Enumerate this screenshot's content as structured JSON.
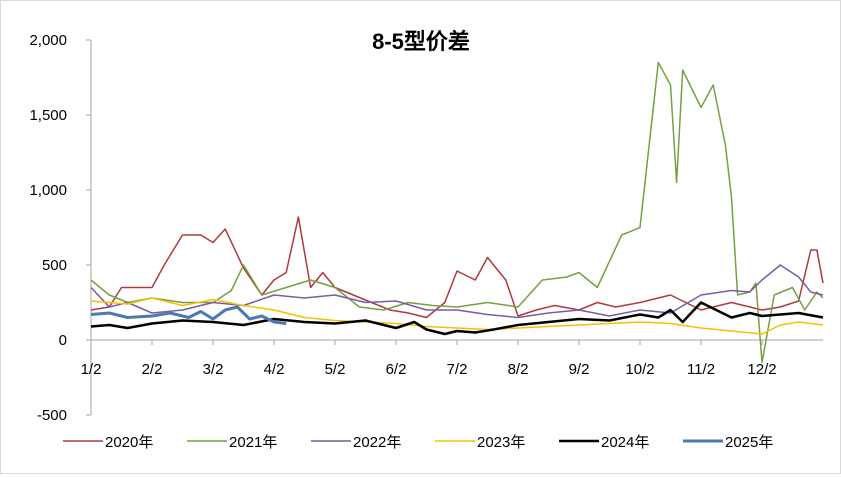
{
  "chart_data": {
    "type": "line",
    "title": "8-5型价差",
    "xlabel": "",
    "ylabel": "",
    "ylim": [
      -500,
      2000
    ],
    "y_ticks": [
      -500,
      0,
      500,
      1000,
      1500,
      2000
    ],
    "y_tick_labels": [
      "-500",
      "0",
      "500",
      "1,000",
      "1,500",
      "2,000"
    ],
    "x_ticks": [
      "1/2",
      "2/2",
      "3/2",
      "4/2",
      "5/2",
      "6/2",
      "7/2",
      "8/2",
      "9/2",
      "10/2",
      "11/2",
      "12/2"
    ],
    "x_domain_months": [
      0,
      12
    ],
    "grid": false,
    "legend_position": "bottom",
    "series": [
      {
        "name": "2020年",
        "color": "#b03a3a",
        "width": 1.5,
        "x": [
          0.0,
          0.3,
          0.5,
          0.7,
          1.0,
          1.2,
          1.5,
          1.8,
          2.0,
          2.2,
          2.5,
          2.8,
          3.0,
          3.2,
          3.4,
          3.6,
          3.8,
          4.0,
          4.3,
          4.6,
          4.9,
          5.2,
          5.5,
          5.8,
          6.0,
          6.3,
          6.5,
          6.8,
          7.0,
          7.3,
          7.6,
          8.0,
          8.3,
          8.6,
          9.0,
          9.5,
          10.0,
          10.5,
          11.0,
          11.3,
          11.6,
          11.8,
          11.9,
          12.0
        ],
        "y": [
          200,
          220,
          350,
          350,
          350,
          500,
          700,
          700,
          650,
          740,
          480,
          300,
          400,
          450,
          820,
          350,
          450,
          350,
          300,
          250,
          200,
          180,
          150,
          250,
          460,
          400,
          550,
          400,
          160,
          200,
          230,
          200,
          250,
          220,
          250,
          300,
          200,
          250,
          200,
          220,
          260,
          600,
          600,
          380
        ]
      },
      {
        "name": "2021年",
        "color": "#77a043",
        "width": 1.5,
        "x": [
          0.0,
          0.3,
          0.6,
          1.0,
          1.5,
          2.0,
          2.3,
          2.5,
          2.8,
          3.2,
          3.6,
          4.0,
          4.4,
          4.8,
          5.2,
          5.6,
          6.0,
          6.5,
          7.0,
          7.4,
          7.8,
          8.0,
          8.3,
          8.7,
          9.0,
          9.3,
          9.5,
          9.6,
          9.7,
          10.0,
          10.2,
          10.4,
          10.5,
          10.6,
          10.8,
          10.9,
          11.0,
          11.2,
          11.5,
          11.7,
          11.9,
          12.0
        ],
        "y": [
          400,
          300,
          250,
          280,
          250,
          250,
          330,
          500,
          300,
          350,
          400,
          350,
          220,
          200,
          250,
          230,
          220,
          250,
          220,
          400,
          420,
          450,
          350,
          700,
          750,
          1850,
          1700,
          1050,
          1800,
          1550,
          1700,
          1300,
          950,
          300,
          320,
          380,
          -150,
          300,
          350,
          200,
          320,
          280
        ]
      },
      {
        "name": "2022年",
        "color": "#7b5aa6",
        "width": 1.5,
        "x": [
          0.0,
          0.3,
          0.6,
          1.0,
          1.5,
          2.0,
          2.5,
          3.0,
          3.5,
          4.0,
          4.5,
          5.0,
          5.5,
          6.0,
          6.5,
          7.0,
          7.5,
          8.0,
          8.5,
          9.0,
          9.5,
          10.0,
          10.5,
          10.8,
          11.0,
          11.3,
          11.6,
          11.8,
          12.0
        ],
        "y": [
          350,
          220,
          250,
          180,
          200,
          250,
          230,
          300,
          280,
          300,
          250,
          260,
          200,
          200,
          170,
          150,
          180,
          200,
          160,
          200,
          180,
          300,
          330,
          320,
          400,
          500,
          420,
          320,
          300
        ]
      },
      {
        "name": "2023年",
        "color": "#f2c200",
        "width": 1.5,
        "x": [
          0.0,
          0.3,
          0.6,
          1.0,
          1.5,
          2.0,
          2.5,
          3.0,
          3.5,
          4.0,
          4.5,
          5.0,
          5.5,
          6.0,
          6.5,
          7.0,
          7.5,
          8.0,
          8.5,
          9.0,
          9.5,
          10.0,
          10.5,
          11.0,
          11.3,
          11.6,
          12.0
        ],
        "y": [
          260,
          250,
          240,
          280,
          230,
          270,
          230,
          200,
          150,
          130,
          120,
          110,
          90,
          80,
          70,
          80,
          90,
          100,
          110,
          120,
          110,
          80,
          60,
          40,
          100,
          120,
          100
        ]
      },
      {
        "name": "2024年",
        "color": "#000000",
        "width": 2.5,
        "x": [
          0.0,
          0.3,
          0.6,
          1.0,
          1.5,
          2.0,
          2.5,
          3.0,
          3.5,
          4.0,
          4.5,
          5.0,
          5.3,
          5.5,
          5.8,
          6.0,
          6.3,
          6.6,
          7.0,
          7.5,
          8.0,
          8.5,
          9.0,
          9.3,
          9.5,
          9.7,
          10.0,
          10.5,
          10.8,
          11.0,
          11.3,
          11.6,
          12.0
        ],
        "y": [
          90,
          100,
          80,
          110,
          130,
          120,
          100,
          140,
          120,
          110,
          130,
          80,
          120,
          70,
          40,
          60,
          50,
          70,
          100,
          120,
          140,
          130,
          170,
          150,
          200,
          120,
          250,
          150,
          180,
          160,
          170,
          180,
          150
        ]
      },
      {
        "name": "2025年",
        "color": "#4a7ab0",
        "width": 3,
        "x": [
          0.0,
          0.3,
          0.6,
          1.0,
          1.3,
          1.6,
          1.8,
          2.0,
          2.2,
          2.4,
          2.6,
          2.8,
          3.0,
          3.2
        ],
        "y": [
          170,
          180,
          150,
          160,
          180,
          150,
          190,
          140,
          200,
          220,
          140,
          160,
          120,
          110
        ]
      }
    ]
  }
}
